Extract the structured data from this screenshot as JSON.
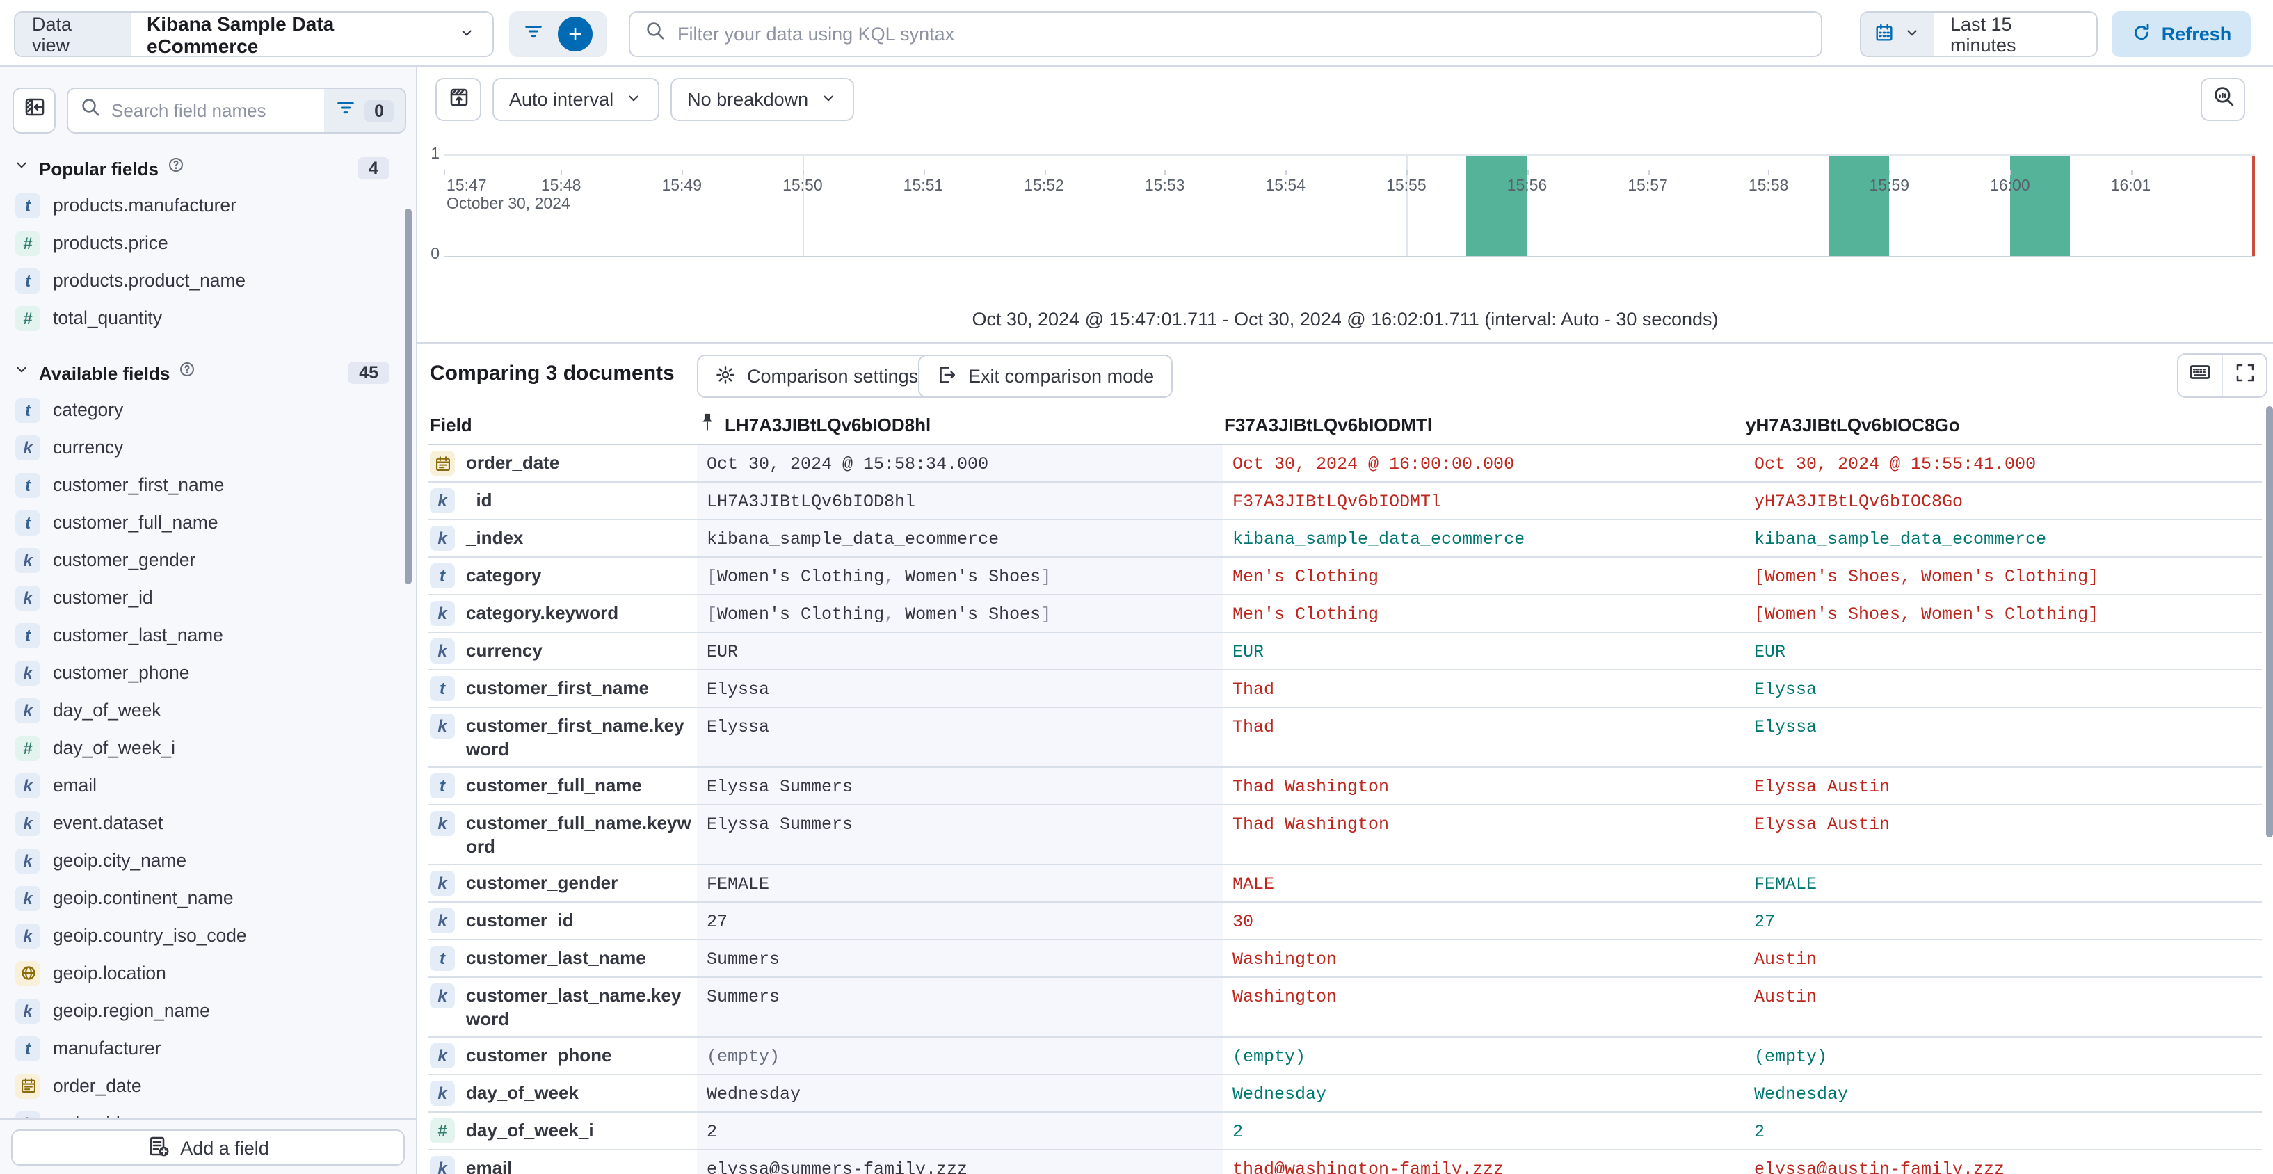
{
  "topbar": {
    "data_view_label": "Data view",
    "data_view_value": "Kibana Sample Data eCommerce",
    "kql_placeholder": "Filter your data using KQL syntax",
    "time_range": "Last 15 minutes",
    "refresh_label": "Refresh"
  },
  "sidebar": {
    "search_placeholder": "Search field names",
    "filter_count": "0",
    "popular": {
      "title": "Popular fields",
      "count": "4",
      "items": [
        {
          "type": "t",
          "name": "products.manufacturer"
        },
        {
          "type": "n",
          "name": "products.price"
        },
        {
          "type": "t",
          "name": "products.product_name"
        },
        {
          "type": "n",
          "name": "total_quantity"
        }
      ]
    },
    "available": {
      "title": "Available fields",
      "count": "45",
      "items": [
        {
          "type": "t",
          "name": "category"
        },
        {
          "type": "k",
          "name": "currency"
        },
        {
          "type": "t",
          "name": "customer_first_name"
        },
        {
          "type": "t",
          "name": "customer_full_name"
        },
        {
          "type": "k",
          "name": "customer_gender"
        },
        {
          "type": "k",
          "name": "customer_id"
        },
        {
          "type": "t",
          "name": "customer_last_name"
        },
        {
          "type": "k",
          "name": "customer_phone"
        },
        {
          "type": "k",
          "name": "day_of_week"
        },
        {
          "type": "n",
          "name": "day_of_week_i"
        },
        {
          "type": "k",
          "name": "email"
        },
        {
          "type": "k",
          "name": "event.dataset"
        },
        {
          "type": "k",
          "name": "geoip.city_name"
        },
        {
          "type": "k",
          "name": "geoip.continent_name"
        },
        {
          "type": "k",
          "name": "geoip.country_iso_code"
        },
        {
          "type": "g",
          "name": "geoip.location"
        },
        {
          "type": "k",
          "name": "geoip.region_name"
        },
        {
          "type": "t",
          "name": "manufacturer"
        },
        {
          "type": "d",
          "name": "order_date"
        },
        {
          "type": "k",
          "name": "order_id"
        }
      ]
    },
    "add_field_label": "Add a field"
  },
  "chart": {
    "interval_label": "Auto interval",
    "breakdown_label": "No breakdown",
    "footer": "Oct 30, 2024 @ 15:47:01.711 - Oct 30, 2024 @ 16:02:01.711 (interval: Auto - 30 seconds)",
    "chart_data": {
      "type": "bar",
      "x_axis": "time",
      "x_ticks": [
        "15:47",
        "15:48",
        "15:49",
        "15:50",
        "15:51",
        "15:52",
        "15:53",
        "15:54",
        "15:55",
        "15:56",
        "15:57",
        "15:58",
        "15:59",
        "16:00",
        "16:01"
      ],
      "x_date_label": "October 30, 2024",
      "x_range": [
        "15:47:01.711",
        "16:02:01.711"
      ],
      "y_ticks": [
        "1",
        "0"
      ],
      "ylim": [
        0,
        1
      ],
      "interval_seconds": 30,
      "bars": [
        {
          "start": "15:55:30",
          "value": 1
        },
        {
          "start": "15:58:30",
          "value": 1
        },
        {
          "start": "16:00:00",
          "value": 1
        }
      ],
      "bar_color": "#54B399",
      "gridline_ticks": [
        "15:50",
        "15:55",
        "16:00"
      ],
      "legend": "off"
    }
  },
  "comparison": {
    "title": "Comparing 3 documents",
    "settings_label": "Comparison settings",
    "exit_label": "Exit comparison mode",
    "table": {
      "field_header": "Field",
      "doc_headers": [
        {
          "id": "LH7A3JIBtLQv6bIOD8hl",
          "pinned": true
        },
        {
          "id": "F37A3JIBtLQv6bIODMTl",
          "pinned": false
        },
        {
          "id": "yH7A3JIBtLQv6bIOC8Go",
          "pinned": false
        }
      ],
      "rows": [
        {
          "field": "order_date",
          "type": "d",
          "values": [
            {
              "t": "Oct 30, 2024 @ 15:58:34.000",
              "c": "default"
            },
            {
              "t": "Oct 30, 2024 @ 16:00:00.000",
              "c": "diff"
            },
            {
              "t": "Oct 30, 2024 @ 15:55:41.000",
              "c": "diff"
            }
          ]
        },
        {
          "field": "_id",
          "type": "k",
          "values": [
            {
              "t": "LH7A3JIBtLQv6bIOD8hl",
              "c": "default"
            },
            {
              "t": "F37A3JIBtLQv6bIODMTl",
              "c": "diff"
            },
            {
              "t": "yH7A3JIBtLQv6bIOC8Go",
              "c": "diff"
            }
          ]
        },
        {
          "field": "_index",
          "type": "k",
          "values": [
            {
              "t": "kibana_sample_data_ecommerce",
              "c": "default"
            },
            {
              "t": "kibana_sample_data_ecommerce",
              "c": "match"
            },
            {
              "t": "kibana_sample_data_ecommerce",
              "c": "match"
            }
          ]
        },
        {
          "field": "category",
          "type": "t",
          "values": [
            {
              "arr": [
                "Women's Clothing",
                "Women's Shoes"
              ],
              "c": "default"
            },
            {
              "t": "Men's Clothing",
              "c": "diff"
            },
            {
              "t": "[Women's Shoes, Women's Clothing]",
              "c": "diff"
            }
          ]
        },
        {
          "field": "category.keyword",
          "type": "k",
          "values": [
            {
              "arr": [
                "Women's Clothing",
                "Women's Shoes"
              ],
              "c": "default"
            },
            {
              "t": "Men's Clothing",
              "c": "diff"
            },
            {
              "t": "[Women's Shoes, Women's Clothing]",
              "c": "diff"
            }
          ]
        },
        {
          "field": "currency",
          "type": "k",
          "values": [
            {
              "t": "EUR",
              "c": "default"
            },
            {
              "t": "EUR",
              "c": "match"
            },
            {
              "t": "EUR",
              "c": "match"
            }
          ]
        },
        {
          "field": "customer_first_name",
          "type": "t",
          "values": [
            {
              "t": "Elyssa",
              "c": "default"
            },
            {
              "t": "Thad",
              "c": "diff"
            },
            {
              "t": "Elyssa",
              "c": "match"
            }
          ]
        },
        {
          "field": "customer_first_name.keyword",
          "type": "k",
          "values": [
            {
              "t": "Elyssa",
              "c": "default"
            },
            {
              "t": "Thad",
              "c": "diff"
            },
            {
              "t": "Elyssa",
              "c": "match"
            }
          ]
        },
        {
          "field": "customer_full_name",
          "type": "t",
          "values": [
            {
              "t": "Elyssa Summers",
              "c": "default"
            },
            {
              "t": "Thad Washington",
              "c": "diff"
            },
            {
              "t": "Elyssa Austin",
              "c": "diff"
            }
          ]
        },
        {
          "field": "customer_full_name.keyword",
          "type": "k",
          "values": [
            {
              "t": "Elyssa Summers",
              "c": "default"
            },
            {
              "t": "Thad Washington",
              "c": "diff"
            },
            {
              "t": "Elyssa Austin",
              "c": "diff"
            }
          ]
        },
        {
          "field": "customer_gender",
          "type": "k",
          "values": [
            {
              "t": "FEMALE",
              "c": "default"
            },
            {
              "t": "MALE",
              "c": "diff"
            },
            {
              "t": "FEMALE",
              "c": "match"
            }
          ]
        },
        {
          "field": "customer_id",
          "type": "k",
          "values": [
            {
              "t": "27",
              "c": "default"
            },
            {
              "t": "30",
              "c": "diff"
            },
            {
              "t": "27",
              "c": "match"
            }
          ]
        },
        {
          "field": "customer_last_name",
          "type": "t",
          "values": [
            {
              "t": "Summers",
              "c": "default"
            },
            {
              "t": "Washington",
              "c": "diff"
            },
            {
              "t": "Austin",
              "c": "diff"
            }
          ]
        },
        {
          "field": "customer_last_name.keyword",
          "type": "k",
          "values": [
            {
              "t": "Summers",
              "c": "default"
            },
            {
              "t": "Washington",
              "c": "diff"
            },
            {
              "t": "Austin",
              "c": "diff"
            }
          ]
        },
        {
          "field": "customer_phone",
          "type": "k",
          "values": [
            {
              "t": "(empty)",
              "c": "muted"
            },
            {
              "t": "(empty)",
              "c": "match"
            },
            {
              "t": "(empty)",
              "c": "match"
            }
          ]
        },
        {
          "field": "day_of_week",
          "type": "k",
          "values": [
            {
              "t": "Wednesday",
              "c": "default"
            },
            {
              "t": "Wednesday",
              "c": "match"
            },
            {
              "t": "Wednesday",
              "c": "match"
            }
          ]
        },
        {
          "field": "day_of_week_i",
          "type": "n",
          "values": [
            {
              "t": "2",
              "c": "default"
            },
            {
              "t": "2",
              "c": "match"
            },
            {
              "t": "2",
              "c": "match"
            }
          ]
        },
        {
          "field": "email",
          "type": "k",
          "values": [
            {
              "t": "elyssa@summers-family.zzz",
              "c": "default"
            },
            {
              "t": "thad@washington-family.zzz",
              "c": "diff"
            },
            {
              "t": "elyssa@austin-family.zzz",
              "c": "diff"
            }
          ]
        }
      ]
    }
  },
  "colors": {
    "accent_blue": "#006BB4",
    "diff_red": "#BD271E",
    "match_teal": "#007871",
    "bar_teal": "#54B399",
    "pinned_bg": "#F5F7FC",
    "border": "#D3DAE6"
  }
}
